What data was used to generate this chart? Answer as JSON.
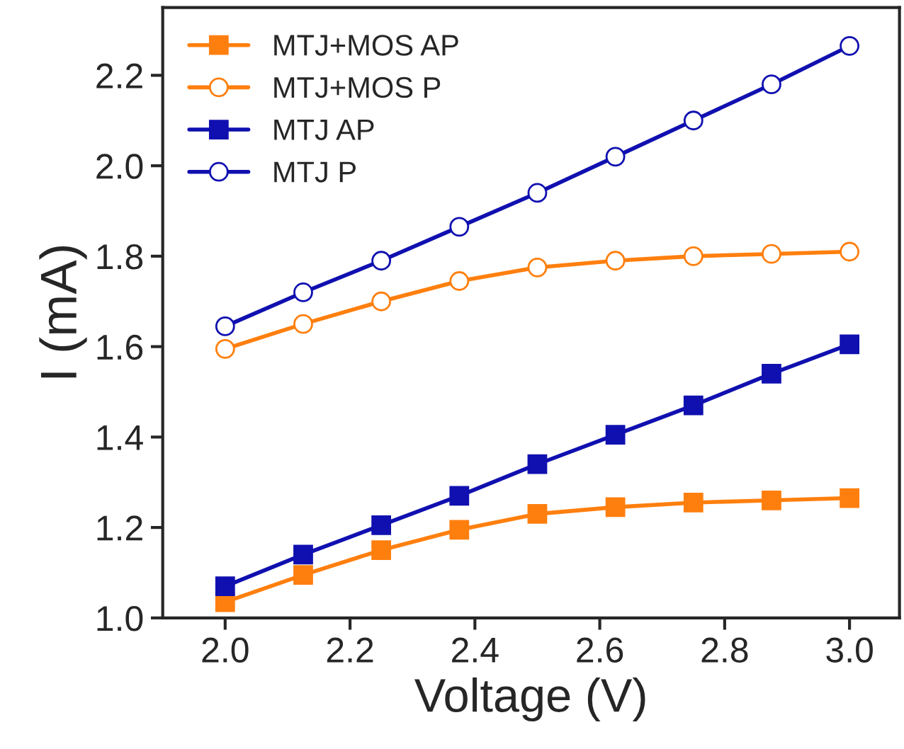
{
  "chart_data": {
    "type": "line",
    "xlabel": "Voltage (V)",
    "ylabel": "I (mA)",
    "x": [
      2.0,
      2.125,
      2.25,
      2.375,
      2.5,
      2.625,
      2.75,
      2.875,
      3.0
    ],
    "series": [
      {
        "name": "MTJ+MOS AP",
        "color": "#ff7f0e",
        "marker": "square",
        "values": [
          1.035,
          1.095,
          1.15,
          1.195,
          1.23,
          1.245,
          1.255,
          1.26,
          1.265
        ]
      },
      {
        "name": "MTJ+MOS P",
        "color": "#ff7f0e",
        "marker": "circle",
        "values": [
          1.595,
          1.65,
          1.7,
          1.745,
          1.775,
          1.79,
          1.8,
          1.805,
          1.81
        ]
      },
      {
        "name": "MTJ AP",
        "color": "#1010b0",
        "marker": "square",
        "values": [
          1.07,
          1.14,
          1.205,
          1.27,
          1.34,
          1.405,
          1.47,
          1.54,
          1.605
        ]
      },
      {
        "name": "MTJ P",
        "color": "#1010b0",
        "marker": "circle",
        "values": [
          1.645,
          1.72,
          1.79,
          1.865,
          1.94,
          2.02,
          2.1,
          2.18,
          2.265
        ]
      }
    ],
    "xlim": [
      1.9,
      3.08
    ],
    "ylim": [
      1.0,
      2.35
    ],
    "xticks": [
      {
        "value": 2.0,
        "label": "2.0"
      },
      2.2,
      2.4,
      2.6,
      2.8,
      {
        "value": 3.0,
        "label": "3.0"
      }
    ],
    "yticks": [
      {
        "value": 1.0,
        "label": "1.0"
      },
      1.2,
      1.4,
      1.6,
      1.8,
      {
        "value": 2.0,
        "label": "2.0"
      },
      2.2
    ],
    "grid": false,
    "legend": "top left",
    "line_style": "solid"
  }
}
